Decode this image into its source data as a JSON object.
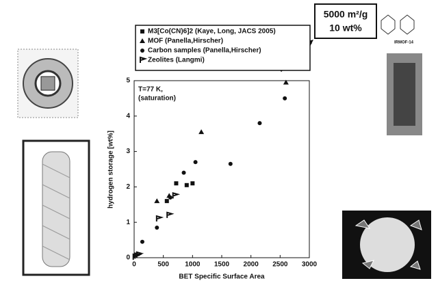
{
  "chart_data": {
    "type": "scatter",
    "xlabel": "BET Specific Surface Area",
    "ylabel": "hydrogen storage [wt%]",
    "annotations": [
      "T=77 K,",
      "(saturation)"
    ],
    "callout": [
      "5000 m²/g",
      "10 wt%"
    ],
    "molecule_label": "IRMOF-14",
    "xlim": [
      0,
      3000
    ],
    "xticks": [
      0,
      500,
      1000,
      1500,
      2000,
      2500,
      3000
    ],
    "ylim": [
      0,
      5
    ],
    "yticks": [
      0,
      1,
      2,
      3,
      4,
      5
    ],
    "series": [
      {
        "name": "M3[Co(CN)6]2 (Kaye, Long, JACS 2005)",
        "color": "#111111",
        "marker": "square",
        "x": [
          560,
          720,
          900,
          1000
        ],
        "values": [
          1.6,
          2.1,
          2.05,
          2.1
        ]
      },
      {
        "name": "MOF (Panella,Hirscher)",
        "color": "#111111",
        "marker": "triangle",
        "x": [
          390,
          600,
          1150,
          2600
        ],
        "values": [
          1.6,
          1.75,
          3.55,
          4.95
        ]
      },
      {
        "name": "Carbon samples (Panella,Hirscher)",
        "color": "#111111",
        "marker": "circle",
        "x": [
          140,
          390,
          620,
          850,
          1050,
          1650,
          2150,
          2580
        ],
        "values": [
          0.45,
          0.85,
          1.7,
          2.4,
          2.7,
          2.65,
          3.8,
          4.5
        ]
      },
      {
        "name": "Zeolites (Langmi)",
        "color": "#111111",
        "marker": "flag",
        "x": [
          20,
          50,
          80,
          420,
          600,
          700
        ],
        "values": [
          0.02,
          0.05,
          0.08,
          1.1,
          1.2,
          1.75
        ]
      }
    ]
  }
}
